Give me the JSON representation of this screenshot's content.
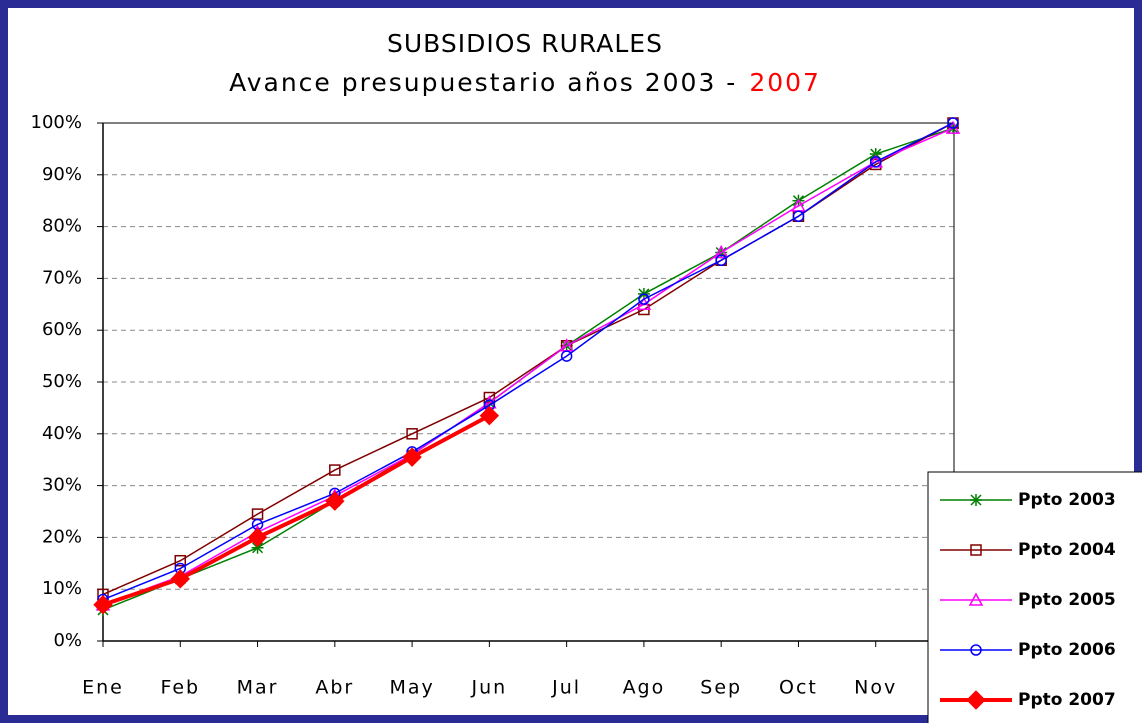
{
  "chart_data": {
    "type": "line",
    "title": "SUBSIDIOS RURALES",
    "subtitle": "Avance presupuestario años 2003 -",
    "subtitle_highlight": "2007",
    "categories": [
      "Ene",
      "Feb",
      "Mar",
      "Abr",
      "May",
      "Jun",
      "Jul",
      "Ago",
      "Sep",
      "Oct",
      "Nov",
      null
    ],
    "ylim": [
      0,
      100
    ],
    "yticks": [
      {
        "value": 0,
        "label": "0%"
      },
      {
        "value": 10,
        "label": "10%"
      },
      {
        "value": 20,
        "label": "20%"
      },
      {
        "value": 30,
        "label": "30%"
      },
      {
        "value": 40,
        "label": "40%"
      },
      {
        "value": 50,
        "label": "50%"
      },
      {
        "value": 60,
        "label": "60%"
      },
      {
        "value": 70,
        "label": "70%"
      },
      {
        "value": 80,
        "label": "80%"
      },
      {
        "value": 90,
        "label": "90%"
      },
      {
        "value": 100,
        "label": "100%"
      }
    ],
    "grid": true,
    "legend": "bottom-right",
    "series": [
      {
        "name": "Ppto 2003",
        "color": "#008000",
        "marker": "asterisk",
        "values": [
          6,
          12,
          18,
          27,
          36,
          46,
          57,
          67,
          75,
          85,
          94,
          99
        ]
      },
      {
        "name": "Ppto 2004",
        "color": "#800000",
        "marker": "square",
        "values": [
          9,
          15.5,
          24.5,
          33,
          40,
          47,
          57,
          64,
          73.5,
          82,
          92,
          100
        ]
      },
      {
        "name": "Ppto 2005",
        "color": "#ff00ff",
        "marker": "triangle",
        "values": [
          7,
          12.5,
          21,
          28,
          36,
          46,
          57,
          65,
          75,
          84,
          92.5,
          99
        ]
      },
      {
        "name": "Ppto 2006",
        "color": "#0000ff",
        "marker": "circle",
        "values": [
          8,
          14,
          22.5,
          28.5,
          36.5,
          45.5,
          55,
          66,
          73.5,
          82,
          92.5,
          100
        ]
      },
      {
        "name": "Ppto 2007",
        "color": "#ff0000",
        "marker": "diamond",
        "legend_color": "#ff0000",
        "width": 4,
        "values": [
          7,
          12,
          20,
          27,
          35.5,
          43.5,
          null,
          null,
          null,
          null,
          null,
          null
        ]
      }
    ]
  }
}
